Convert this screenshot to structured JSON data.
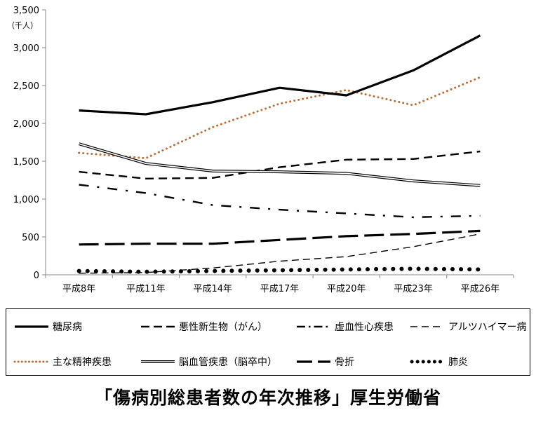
{
  "chart_data": {
    "type": "line",
    "unit": "（千人）",
    "categories": [
      "平成8年",
      "平成11年",
      "平成14年",
      "平成17年",
      "平成20年",
      "平成23年",
      "平成26年"
    ],
    "ylim": [
      0,
      3500
    ],
    "yticks": [
      "0",
      "500",
      "1,000",
      "1,500",
      "2,000",
      "2,500",
      "3,000",
      "3,500"
    ],
    "ytick_values": [
      0,
      500,
      1000,
      1500,
      2000,
      2500,
      3000,
      3500
    ],
    "grid": false,
    "legend_position": "bottom",
    "series": [
      {
        "name": "糖尿病",
        "values": [
          2170,
          2120,
          2280,
          2470,
          2370,
          2700,
          3160
        ],
        "style": "solid-thick"
      },
      {
        "name": "悪性新生物（がん）",
        "values": [
          1360,
          1270,
          1280,
          1420,
          1520,
          1530,
          1630
        ],
        "style": "dashed"
      },
      {
        "name": "虚血性心疾患",
        "values": [
          1190,
          1080,
          920,
          860,
          810,
          760,
          780
        ],
        "style": "dash-dot"
      },
      {
        "name": "アルツハイマー病",
        "values": [
          20,
          30,
          90,
          180,
          240,
          370,
          540
        ],
        "style": "thin-dashed"
      },
      {
        "name": "主な精神疾患",
        "values": [
          1610,
          1540,
          1950,
          2260,
          2440,
          2240,
          2610
        ],
        "style": "dotted-orange"
      },
      {
        "name": "脳血管疾患（脳卒中）",
        "values": [
          1730,
          1470,
          1370,
          1360,
          1340,
          1240,
          1180
        ],
        "style": "double"
      },
      {
        "name": "骨折",
        "values": [
          400,
          410,
          410,
          460,
          510,
          540,
          580
        ],
        "style": "long-dash"
      },
      {
        "name": "肺炎",
        "values": [
          50,
          40,
          50,
          60,
          70,
          80,
          70
        ],
        "style": "big-dots"
      }
    ]
  },
  "caption": "「傷病別総患者数の年次推移」厚生労働省",
  "colors": {
    "line": "#000000",
    "mental_health_dots": "#b7703c"
  }
}
